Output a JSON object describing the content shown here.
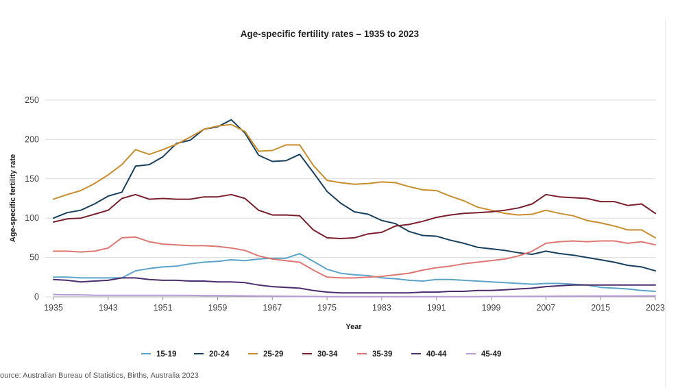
{
  "chart_data": {
    "type": "line",
    "title": "Age-specific fertility rates – 1935 to 2023",
    "xlabel": "Year",
    "ylabel": "Age-specific fertility rate",
    "xlim": [
      1935,
      2023
    ],
    "ylim": [
      0,
      250
    ],
    "x_ticks": [
      "1935",
      "1943",
      "1951",
      "1959",
      "1967",
      "1975",
      "1983",
      "1991",
      "1999",
      "2007",
      "2015",
      "2023"
    ],
    "y_ticks": [
      "0",
      "50",
      "100",
      "150",
      "200",
      "250"
    ],
    "grid": true,
    "legend_position": "bottom",
    "x": [
      1935,
      1937,
      1939,
      1941,
      1943,
      1945,
      1947,
      1949,
      1951,
      1953,
      1955,
      1957,
      1959,
      1961,
      1963,
      1965,
      1967,
      1969,
      1971,
      1973,
      1975,
      1977,
      1979,
      1981,
      1983,
      1985,
      1987,
      1989,
      1991,
      1993,
      1995,
      1997,
      1999,
      2001,
      2003,
      2005,
      2007,
      2009,
      2011,
      2013,
      2015,
      2017,
      2019,
      2021,
      2023
    ],
    "series": [
      {
        "name": "15-19",
        "color": "#5ba3c9",
        "values": [
          25,
          25,
          24,
          24,
          24,
          24,
          33,
          36,
          38,
          39,
          42,
          44,
          45,
          47,
          46,
          48,
          49,
          49,
          55,
          45,
          35,
          30,
          28,
          27,
          24,
          23,
          21,
          20,
          22,
          22,
          21,
          20,
          19,
          18,
          17,
          16,
          17,
          17,
          16,
          15,
          12,
          11,
          10,
          8,
          7
        ]
      },
      {
        "name": "20-24",
        "color": "#17405e",
        "values": [
          100,
          107,
          110,
          118,
          128,
          133,
          166,
          168,
          178,
          195,
          199,
          213,
          216,
          225,
          208,
          180,
          172,
          173,
          181,
          158,
          134,
          119,
          108,
          105,
          97,
          93,
          83,
          78,
          77,
          72,
          68,
          63,
          61,
          59,
          56,
          54,
          58,
          55,
          53,
          50,
          47,
          44,
          40,
          38,
          33
        ]
      },
      {
        "name": "25-29",
        "color": "#c98d2e",
        "values": [
          124,
          130,
          135,
          144,
          155,
          168,
          187,
          181,
          187,
          194,
          203,
          213,
          217,
          219,
          210,
          185,
          186,
          193,
          193,
          167,
          148,
          145,
          143,
          144,
          146,
          145,
          140,
          136,
          135,
          128,
          122,
          114,
          110,
          106,
          104,
          105,
          110,
          106,
          103,
          97,
          94,
          90,
          85,
          85,
          75
        ]
      },
      {
        "name": "30-34",
        "color": "#7a1f2b",
        "values": [
          95,
          99,
          100,
          105,
          110,
          125,
          130,
          124,
          125,
          124,
          124,
          127,
          127,
          130,
          125,
          110,
          104,
          104,
          103,
          85,
          75,
          74,
          75,
          80,
          82,
          90,
          92,
          96,
          101,
          104,
          106,
          107,
          108,
          110,
          113,
          118,
          130,
          127,
          126,
          125,
          121,
          121,
          116,
          118,
          106
        ]
      },
      {
        "name": "35-39",
        "color": "#de7672",
        "values": [
          58,
          58,
          57,
          58,
          62,
          75,
          76,
          70,
          67,
          66,
          65,
          65,
          64,
          62,
          59,
          52,
          48,
          46,
          44,
          34,
          25,
          24,
          24,
          25,
          26,
          28,
          30,
          34,
          37,
          39,
          42,
          44,
          46,
          48,
          52,
          58,
          68,
          70,
          71,
          70,
          71,
          71,
          68,
          70,
          66
        ]
      },
      {
        "name": "40-44",
        "color": "#4b2c6e",
        "values": [
          22,
          21,
          19,
          20,
          21,
          24,
          24,
          22,
          21,
          21,
          20,
          20,
          19,
          19,
          18,
          15,
          13,
          12,
          11,
          8,
          6,
          5,
          5,
          5,
          5,
          5,
          5,
          6,
          6,
          7,
          7,
          8,
          8,
          9,
          10,
          11,
          13,
          14,
          15,
          15,
          15,
          15,
          15,
          15,
          15
        ]
      },
      {
        "name": "45-49",
        "color": "#b59ad6",
        "values": [
          3,
          2.5,
          2.5,
          2,
          2,
          2,
          2,
          2,
          2,
          2,
          1.8,
          1.6,
          1.5,
          1.4,
          1.2,
          1,
          0.8,
          0.6,
          0.5,
          0.4,
          0.3,
          0.3,
          0.3,
          0.3,
          0.3,
          0.3,
          0.3,
          0.3,
          0.3,
          0.3,
          0.3,
          0.3,
          0.4,
          0.4,
          0.5,
          0.6,
          0.7,
          0.8,
          0.9,
          1,
          1,
          1,
          1,
          1.1,
          1.2
        ]
      }
    ]
  },
  "source": "ource: Australian Bureau of Statistics, Births, Australia 2023"
}
